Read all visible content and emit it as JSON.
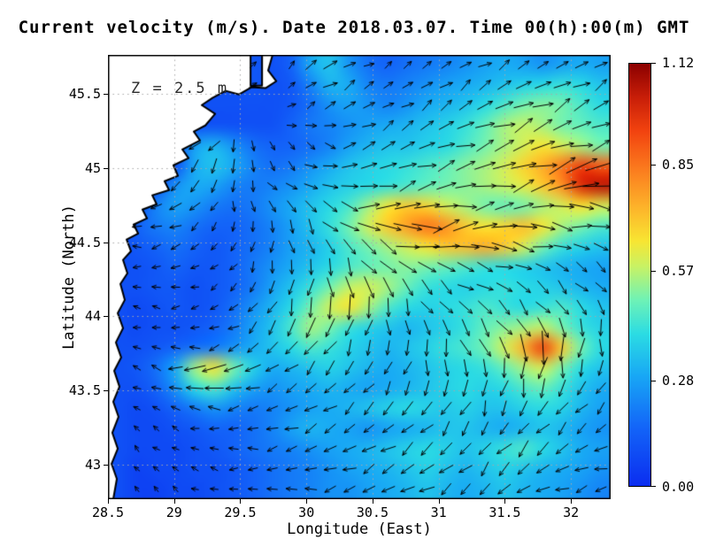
{
  "chart_data": {
    "type": "heatmap",
    "title": "Current velocity (m/s). Date 2018.03.07. Time 00(h):00(m) GMT",
    "annotation": "Z = 2.5 m",
    "xlabel": "Longitude (East)",
    "ylabel": "Latitude (North)",
    "xlim": [
      28.5,
      32.3
    ],
    "ylim": [
      42.77,
      45.76
    ],
    "xticks": [
      28.5,
      29,
      29.5,
      30,
      30.5,
      31,
      31.5,
      32
    ],
    "xtick_labels": [
      "28.5",
      "29",
      "29.5",
      "30",
      "30.5",
      "31",
      "31.5",
      "32"
    ],
    "yticks": [
      43,
      43.5,
      44,
      44.5,
      45,
      45.5
    ],
    "ytick_labels": [
      "43",
      "43.5",
      "44",
      "44.5",
      "45",
      "45.5"
    ],
    "grid": "dotted",
    "grid_color": "#a8a8a8",
    "colorbar": {
      "min": 0,
      "max": 1.12,
      "ticks": [
        0.0,
        0.28,
        0.57,
        0.85,
        1.12
      ],
      "labels": [
        "0.00",
        "0.28",
        "0.57",
        "0.85",
        "1.12"
      ]
    },
    "colormap": [
      {
        "t": 0.0,
        "c": "#0b2df0"
      },
      {
        "t": 0.14,
        "c": "#1365f8"
      },
      {
        "t": 0.26,
        "c": "#18a7f5"
      },
      {
        "t": 0.36,
        "c": "#2bdce3"
      },
      {
        "t": 0.44,
        "c": "#6ef2b6"
      },
      {
        "t": 0.52,
        "c": "#c8f264"
      },
      {
        "t": 0.58,
        "c": "#f8e532"
      },
      {
        "t": 0.66,
        "c": "#fdb32a"
      },
      {
        "t": 0.75,
        "c": "#fb7b1e"
      },
      {
        "t": 0.84,
        "c": "#f2430f"
      },
      {
        "t": 0.92,
        "c": "#c81e08"
      },
      {
        "t": 1.0,
        "c": "#8b0000"
      }
    ],
    "speed_grid": {
      "cols": 26,
      "rows": 22,
      "values": [
        [
          null,
          null,
          null,
          null,
          null,
          null,
          null,
          0.12,
          null,
          0.15,
          0.3,
          0.35,
          0.25,
          0.18,
          0.15,
          0.18,
          0.2,
          0.22,
          0.25,
          0.28,
          0.3,
          0.28,
          0.25,
          0.28,
          0.3,
          0.28
        ],
        [
          null,
          null,
          null,
          null,
          null,
          null,
          null,
          0.12,
          null,
          0.12,
          0.22,
          0.32,
          0.3,
          0.22,
          0.2,
          0.22,
          0.25,
          0.28,
          0.3,
          0.32,
          0.35,
          0.38,
          0.4,
          0.42,
          0.4,
          0.35
        ],
        [
          null,
          null,
          null,
          null,
          null,
          null,
          null,
          null,
          null,
          0.12,
          0.18,
          0.25,
          0.28,
          0.25,
          0.22,
          0.25,
          0.3,
          0.32,
          0.35,
          0.4,
          0.45,
          0.5,
          0.52,
          0.5,
          0.45,
          0.4
        ],
        [
          null,
          null,
          null,
          null,
          null,
          null,
          null,
          null,
          null,
          0.15,
          0.2,
          0.22,
          0.25,
          0.28,
          0.3,
          0.32,
          0.35,
          0.38,
          0.42,
          0.48,
          0.55,
          0.58,
          0.55,
          0.5,
          0.48,
          0.45
        ],
        [
          null,
          null,
          null,
          null,
          0.28,
          0.32,
          0.25,
          0.18,
          0.15,
          0.15,
          0.18,
          0.22,
          0.28,
          0.32,
          0.35,
          0.35,
          0.38,
          0.4,
          0.45,
          0.5,
          0.55,
          0.6,
          0.65,
          0.6,
          0.55,
          0.5
        ],
        [
          null,
          null,
          null,
          null,
          0.3,
          0.35,
          0.3,
          0.22,
          0.18,
          0.2,
          0.25,
          0.3,
          0.35,
          0.38,
          0.4,
          0.42,
          0.45,
          0.48,
          0.52,
          0.55,
          0.6,
          0.68,
          0.75,
          0.85,
          0.95,
          0.9
        ],
        [
          null,
          null,
          null,
          0.25,
          0.3,
          0.28,
          0.22,
          0.2,
          0.22,
          0.25,
          0.3,
          0.35,
          0.38,
          0.4,
          0.42,
          0.45,
          0.48,
          0.5,
          0.52,
          0.55,
          0.58,
          0.62,
          0.7,
          0.8,
          1.0,
          1.05
        ],
        [
          null,
          null,
          0.22,
          0.28,
          0.25,
          0.2,
          0.18,
          0.2,
          0.25,
          0.3,
          0.35,
          0.4,
          0.45,
          0.55,
          0.65,
          0.7,
          0.68,
          0.6,
          0.55,
          0.5,
          0.48,
          0.5,
          0.55,
          0.6,
          0.65,
          0.6
        ],
        [
          null,
          0.15,
          0.2,
          0.22,
          0.18,
          0.15,
          0.15,
          0.18,
          0.22,
          0.28,
          0.35,
          0.42,
          0.5,
          0.6,
          0.7,
          0.78,
          0.85,
          0.8,
          0.7,
          0.65,
          0.68,
          0.72,
          0.65,
          0.55,
          0.5,
          0.45
        ],
        [
          null,
          0.12,
          0.15,
          0.18,
          0.15,
          0.12,
          0.15,
          0.18,
          0.22,
          0.28,
          0.32,
          0.38,
          0.45,
          0.5,
          0.55,
          0.6,
          0.65,
          0.7,
          0.72,
          0.75,
          0.7,
          0.6,
          0.5,
          0.42,
          0.38,
          0.35
        ],
        [
          null,
          0.1,
          0.12,
          0.15,
          0.12,
          0.12,
          0.15,
          0.2,
          0.25,
          0.3,
          0.35,
          0.4,
          0.45,
          0.48,
          0.5,
          0.52,
          0.5,
          0.48,
          0.45,
          0.42,
          0.4,
          0.38,
          0.35,
          0.32,
          0.3,
          0.28
        ],
        [
          null,
          0.1,
          0.12,
          0.12,
          0.1,
          0.12,
          0.15,
          0.2,
          0.28,
          0.35,
          0.42,
          0.5,
          0.58,
          0.6,
          0.55,
          0.48,
          0.42,
          0.4,
          0.38,
          0.4,
          0.42,
          0.4,
          0.38,
          0.35,
          0.32,
          0.3
        ],
        [
          null,
          0.08,
          0.1,
          0.12,
          0.1,
          0.12,
          0.18,
          0.25,
          0.32,
          0.4,
          0.5,
          0.6,
          0.65,
          0.55,
          0.45,
          0.4,
          0.38,
          0.4,
          0.42,
          0.45,
          0.42,
          0.4,
          0.42,
          0.45,
          0.4,
          0.35
        ],
        [
          null,
          0.08,
          0.1,
          0.1,
          0.12,
          0.15,
          0.2,
          0.28,
          0.35,
          0.45,
          0.55,
          0.5,
          0.42,
          0.38,
          0.35,
          0.32,
          0.35,
          0.38,
          0.42,
          0.48,
          0.52,
          0.55,
          0.58,
          0.5,
          0.42,
          0.38
        ],
        [
          null,
          0.1,
          0.12,
          0.15,
          0.18,
          0.2,
          0.25,
          0.3,
          0.35,
          0.4,
          0.45,
          0.42,
          0.38,
          0.35,
          0.32,
          0.35,
          0.38,
          0.42,
          0.45,
          0.5,
          0.6,
          0.75,
          0.95,
          0.7,
          0.5,
          0.4
        ],
        [
          null,
          0.12,
          0.18,
          0.3,
          0.55,
          0.65,
          0.5,
          0.38,
          0.3,
          0.32,
          0.35,
          0.38,
          0.35,
          0.32,
          0.3,
          0.32,
          0.35,
          0.38,
          0.4,
          0.42,
          0.48,
          0.55,
          0.6,
          0.5,
          0.4,
          0.35
        ],
        [
          null,
          0.1,
          0.15,
          0.25,
          0.4,
          0.45,
          0.35,
          0.28,
          0.25,
          0.28,
          0.3,
          0.32,
          0.3,
          0.28,
          0.3,
          0.32,
          0.35,
          0.38,
          0.4,
          0.38,
          0.4,
          0.45,
          0.48,
          0.42,
          0.35,
          0.3
        ],
        [
          null,
          0.08,
          0.1,
          0.15,
          0.2,
          0.25,
          0.22,
          0.2,
          0.22,
          0.25,
          0.28,
          0.3,
          0.32,
          0.35,
          0.38,
          0.4,
          0.38,
          0.36,
          0.38,
          0.35,
          0.35,
          0.38,
          0.4,
          0.38,
          0.32,
          0.28
        ],
        [
          null,
          0.08,
          0.08,
          0.1,
          0.12,
          0.15,
          0.15,
          0.18,
          0.22,
          0.28,
          0.32,
          0.3,
          0.28,
          0.25,
          0.28,
          0.3,
          0.32,
          0.35,
          0.35,
          0.32,
          0.3,
          0.32,
          0.35,
          0.32,
          0.28,
          0.25
        ],
        [
          null,
          0.08,
          0.08,
          0.08,
          0.1,
          0.12,
          0.15,
          0.18,
          0.2,
          0.22,
          0.25,
          0.28,
          0.3,
          0.32,
          0.35,
          0.38,
          0.4,
          0.38,
          0.35,
          0.38,
          0.42,
          0.45,
          0.4,
          0.35,
          0.3,
          0.28
        ],
        [
          null,
          0.06,
          0.08,
          0.08,
          0.1,
          0.1,
          0.12,
          0.15,
          0.18,
          0.2,
          0.22,
          0.25,
          0.28,
          0.3,
          0.32,
          0.35,
          0.38,
          0.35,
          0.32,
          0.35,
          0.38,
          0.35,
          0.32,
          0.3,
          0.28,
          0.25
        ],
        [
          null,
          0.06,
          0.06,
          0.08,
          0.08,
          0.1,
          0.12,
          0.15,
          0.18,
          0.2,
          0.22,
          0.25,
          0.25,
          0.28,
          0.3,
          0.32,
          0.35,
          0.32,
          0.3,
          0.32,
          0.35,
          0.32,
          0.3,
          0.28,
          0.25,
          0.22
        ]
      ]
    },
    "quiver": {
      "cols": 13,
      "rows": 11,
      "angles_deg": [
        [
          0,
          0,
          0,
          0,
          60,
          40,
          30,
          35,
          40,
          30,
          25,
          30,
          35
        ],
        [
          0,
          0,
          0,
          0,
          50,
          35,
          30,
          30,
          35,
          30,
          25,
          30,
          30
        ],
        [
          200,
          210,
          220,
          250,
          300,
          330,
          20,
          30,
          25,
          20,
          25,
          20,
          15
        ],
        [
          190,
          200,
          230,
          270,
          310,
          340,
          10,
          20,
          15,
          10,
          15,
          10,
          5
        ],
        [
          180,
          190,
          210,
          250,
          280,
          300,
          330,
          350,
          10,
          5,
          0,
          350,
          345
        ],
        [
          170,
          180,
          200,
          230,
          260,
          270,
          290,
          310,
          330,
          340,
          330,
          320,
          315
        ],
        [
          160,
          170,
          190,
          210,
          240,
          250,
          260,
          280,
          300,
          310,
          300,
          290,
          280
        ],
        [
          150,
          160,
          180,
          200,
          220,
          230,
          240,
          250,
          270,
          280,
          270,
          260,
          250
        ],
        [
          140,
          150,
          170,
          190,
          200,
          210,
          220,
          230,
          240,
          250,
          240,
          230,
          220
        ],
        [
          130,
          140,
          160,
          180,
          190,
          200,
          210,
          215,
          220,
          230,
          220,
          210,
          200
        ],
        [
          120,
          130,
          150,
          170,
          180,
          190,
          200,
          205,
          210,
          220,
          210,
          200,
          190
        ]
      ]
    },
    "land": {
      "fill": "#ffffff",
      "stroke": "#000000",
      "polygons": [
        [
          [
            28.5,
            45.762
          ],
          [
            29.578,
            45.762
          ],
          [
            29.578,
            45.553
          ],
          [
            29.665,
            45.553
          ],
          [
            29.665,
            45.762
          ],
          [
            29.745,
            45.762
          ],
          [
            29.711,
            45.655
          ],
          [
            29.772,
            45.583
          ],
          [
            29.691,
            45.536
          ],
          [
            29.584,
            45.542
          ],
          [
            29.491,
            45.494
          ],
          [
            29.39,
            45.518
          ],
          [
            29.29,
            45.47
          ],
          [
            29.209,
            45.422
          ],
          [
            29.31,
            45.363
          ],
          [
            29.236,
            45.285
          ],
          [
            29.149,
            45.244
          ],
          [
            29.196,
            45.184
          ],
          [
            29.062,
            45.124
          ],
          [
            29.109,
            45.065
          ],
          [
            28.995,
            45.017
          ],
          [
            29.029,
            44.946
          ],
          [
            28.928,
            44.91
          ],
          [
            28.962,
            44.85
          ],
          [
            28.835,
            44.815
          ],
          [
            28.868,
            44.755
          ],
          [
            28.761,
            44.719
          ],
          [
            28.795,
            44.66
          ],
          [
            28.694,
            44.618
          ],
          [
            28.728,
            44.558
          ],
          [
            28.641,
            44.517
          ],
          [
            28.674,
            44.439
          ],
          [
            28.614,
            44.38
          ],
          [
            28.647,
            44.29
          ],
          [
            28.594,
            44.219
          ],
          [
            28.627,
            44.111
          ],
          [
            28.574,
            44.022
          ],
          [
            28.614,
            43.921
          ],
          [
            28.56,
            43.825
          ],
          [
            28.6,
            43.724
          ],
          [
            28.547,
            43.634
          ],
          [
            28.587,
            43.527
          ],
          [
            28.54,
            43.426
          ],
          [
            28.58,
            43.324
          ],
          [
            28.533,
            43.217
          ],
          [
            28.574,
            43.11
          ],
          [
            28.527,
            43.008
          ],
          [
            28.567,
            42.907
          ],
          [
            28.54,
            42.77
          ],
          [
            28.5,
            42.77
          ]
        ]
      ]
    }
  }
}
